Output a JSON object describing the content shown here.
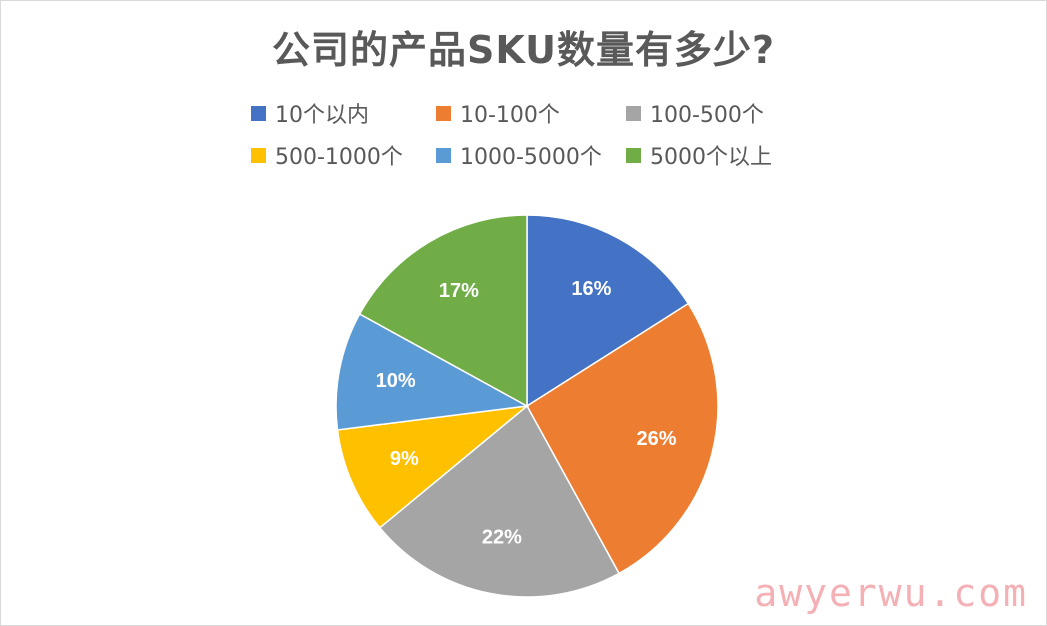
{
  "chart_data": {
    "type": "pie",
    "title": "公司的产品SKU数量有多少?",
    "categories": [
      "10个以内",
      "10-100个",
      "100-500个",
      "500-1000个",
      "1000-5000个",
      "5000个以上"
    ],
    "values": [
      16,
      26,
      22,
      9,
      10,
      17
    ],
    "labels": [
      "16%",
      "26%",
      "22%",
      "9%",
      "10%",
      "17%"
    ],
    "colors": [
      "#4472C4",
      "#ED7D31",
      "#A5A5A5",
      "#FFC000",
      "#5B9BD5",
      "#70AD47"
    ],
    "legend_position": "top",
    "start": "12 o'clock, clockwise"
  },
  "watermark": "awyerwu.com"
}
